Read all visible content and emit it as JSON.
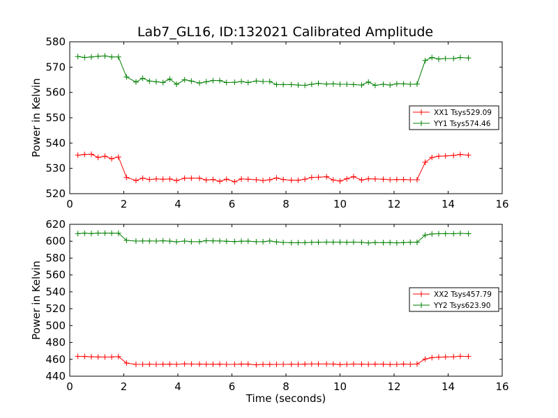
{
  "figure": {
    "title": "Lab7_GL16, ID:132021 Calibrated Amplitude"
  },
  "chart_data": [
    {
      "type": "line",
      "title": "Lab7_GL16, ID:132021 Calibrated Amplitude",
      "xlabel": "",
      "ylabel": "Power in Kelvin",
      "xlim": [
        0,
        16
      ],
      "ylim": [
        520,
        580
      ],
      "x_ticks": [
        "0",
        "2",
        "4",
        "6",
        "8",
        "10",
        "12",
        "14",
        "16"
      ],
      "y_ticks": [
        "520",
        "530",
        "540",
        "550",
        "560",
        "570",
        "580"
      ],
      "grid": false,
      "legend_position": "center-right",
      "x": [
        0.3,
        0.55,
        0.8,
        1.05,
        1.3,
        1.55,
        1.8,
        2.1,
        2.45,
        2.7,
        2.95,
        3.2,
        3.45,
        3.7,
        3.95,
        4.25,
        4.5,
        4.8,
        5.05,
        5.3,
        5.55,
        5.8,
        6.1,
        6.35,
        6.6,
        6.9,
        7.15,
        7.4,
        7.65,
        7.9,
        8.2,
        8.45,
        8.7,
        8.95,
        9.2,
        9.5,
        9.75,
        10.0,
        10.25,
        10.5,
        10.8,
        11.05,
        11.3,
        11.6,
        11.85,
        12.1,
        12.35,
        12.6,
        12.85,
        13.15,
        13.4,
        13.65,
        13.9,
        14.2,
        14.45,
        14.75
      ],
      "series": [
        {
          "name": "XX1 Tsys529.09",
          "color": "#ff0000",
          "values": [
            535.2,
            535.5,
            535.6,
            534.3,
            534.8,
            533.8,
            534.5,
            526.4,
            525.2,
            526.1,
            525.6,
            525.8,
            525.7,
            525.8,
            525.2,
            526.1,
            526.1,
            526.1,
            525.4,
            525.6,
            524.9,
            525.7,
            524.7,
            525.8,
            525.7,
            525.5,
            525.2,
            525.5,
            526.2,
            525.6,
            525.3,
            525.3,
            525.7,
            526.4,
            526.5,
            526.7,
            525.4,
            525.0,
            525.9,
            526.7,
            525.4,
            525.9,
            525.8,
            525.7,
            525.5,
            525.6,
            525.6,
            525.5,
            525.5,
            532.4,
            534.3,
            534.8,
            534.9,
            535.1,
            535.5,
            535.2
          ]
        },
        {
          "name": "YY1 Tsys574.46",
          "color": "#008000",
          "values": [
            574.2,
            573.8,
            574.0,
            574.3,
            574.4,
            574.0,
            574.0,
            566.1,
            564.1,
            565.6,
            564.5,
            564.2,
            563.9,
            565.3,
            563.2,
            565.0,
            564.5,
            563.7,
            564.2,
            564.7,
            564.7,
            563.9,
            564.0,
            564.3,
            563.9,
            564.5,
            564.3,
            564.3,
            563.1,
            563.1,
            563.1,
            562.9,
            562.8,
            563.2,
            563.6,
            563.3,
            563.4,
            563.2,
            563.2,
            563.1,
            562.9,
            564.1,
            562.8,
            563.2,
            562.9,
            563.4,
            563.4,
            563.2,
            563.3,
            572.6,
            573.8,
            573.2,
            573.4,
            573.4,
            573.8,
            573.6
          ]
        }
      ]
    },
    {
      "type": "line",
      "title": "",
      "xlabel": "Time (seconds)",
      "ylabel": "Power in Kelvin",
      "xlim": [
        0,
        16
      ],
      "ylim": [
        440,
        620
      ],
      "x_ticks": [
        "0",
        "2",
        "4",
        "6",
        "8",
        "10",
        "12",
        "14",
        "16"
      ],
      "y_ticks": [
        "440",
        "460",
        "480",
        "500",
        "520",
        "540",
        "560",
        "580",
        "600",
        "620"
      ],
      "grid": false,
      "legend_position": "center-right",
      "x": [
        0.3,
        0.55,
        0.8,
        1.05,
        1.3,
        1.55,
        1.8,
        2.1,
        2.45,
        2.7,
        2.95,
        3.2,
        3.45,
        3.7,
        3.95,
        4.25,
        4.5,
        4.8,
        5.05,
        5.3,
        5.55,
        5.8,
        6.1,
        6.35,
        6.6,
        6.9,
        7.15,
        7.4,
        7.65,
        7.9,
        8.2,
        8.45,
        8.7,
        8.95,
        9.2,
        9.5,
        9.75,
        10.0,
        10.25,
        10.5,
        10.8,
        11.05,
        11.3,
        11.6,
        11.85,
        12.1,
        12.35,
        12.6,
        12.85,
        13.15,
        13.4,
        13.65,
        13.9,
        14.2,
        14.45,
        14.75
      ],
      "series": [
        {
          "name": "XX2 Tsys457.79",
          "color": "#ff0000",
          "values": [
            463.5,
            463.4,
            463.0,
            462.8,
            462.7,
            462.8,
            463.2,
            455.6,
            454.0,
            454.0,
            454.1,
            454.0,
            454.1,
            454.2,
            454.0,
            454.6,
            454.4,
            454.3,
            454.1,
            454.1,
            454.2,
            454.0,
            454.0,
            454.4,
            454.3,
            453.5,
            454.0,
            453.9,
            454.0,
            454.0,
            454.1,
            454.0,
            454.3,
            454.5,
            454.4,
            454.5,
            454.4,
            453.8,
            454.0,
            454.4,
            454.2,
            454.0,
            454.3,
            454.2,
            453.9,
            454.0,
            454.4,
            454.0,
            454.5,
            460.3,
            462.0,
            462.6,
            462.8,
            463.0,
            463.6,
            463.4
          ]
        },
        {
          "name": "YY2 Tsys623.90",
          "color": "#008000",
          "values": [
            609.0,
            609.5,
            609.1,
            609.6,
            609.6,
            609.5,
            609.5,
            601.0,
            600.2,
            600.3,
            600.3,
            600.2,
            600.5,
            600.1,
            599.3,
            600.2,
            599.4,
            599.4,
            600.6,
            600.4,
            600.3,
            599.9,
            599.6,
            600.0,
            600.1,
            599.4,
            599.4,
            600.3,
            599.1,
            598.5,
            598.2,
            598.2,
            598.3,
            598.6,
            598.7,
            598.9,
            598.9,
            598.9,
            598.6,
            598.9,
            598.6,
            597.9,
            598.4,
            598.3,
            598.4,
            598.0,
            598.4,
            598.7,
            598.7,
            607.2,
            608.5,
            608.9,
            609.0,
            608.9,
            609.3,
            608.9
          ]
        }
      ]
    }
  ]
}
